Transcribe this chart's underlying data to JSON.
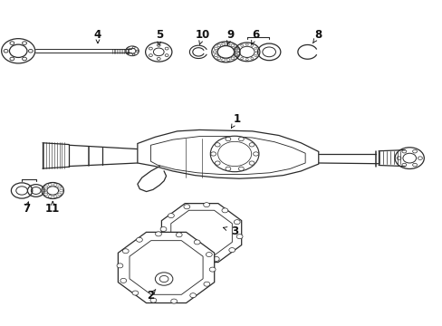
{
  "background_color": "#ffffff",
  "figure_width": 4.89,
  "figure_height": 3.6,
  "dpi": 100,
  "line_color": "#2a2a2a",
  "line_width": 0.9,
  "label_positions": {
    "1": [
      0.535,
      0.635,
      0.515,
      0.592
    ],
    "2": [
      0.34,
      0.092,
      0.355,
      0.118
    ],
    "3": [
      0.53,
      0.29,
      0.495,
      0.305
    ],
    "4": [
      0.22,
      0.895,
      0.22,
      0.858
    ],
    "5": [
      0.36,
      0.895,
      0.358,
      0.852
    ],
    "6": [
      0.578,
      0.895,
      0.565,
      0.856
    ],
    "7": [
      0.058,
      0.358,
      0.065,
      0.39
    ],
    "8": [
      0.72,
      0.895,
      0.7,
      0.855
    ],
    "9": [
      0.52,
      0.895,
      0.512,
      0.855
    ],
    "10": [
      0.458,
      0.895,
      0.448,
      0.855
    ],
    "11": [
      0.118,
      0.358,
      0.118,
      0.392
    ]
  }
}
